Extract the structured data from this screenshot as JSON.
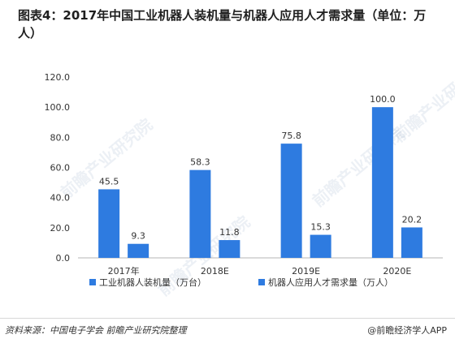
{
  "title": "图表4：2017年中国工业机器人装机量与机器人应用人才需求量（单位：万人）",
  "source": "资料来源：中国电子学会  前瞻产业研究院整理",
  "brand": "@前瞻经济学人APP",
  "watermark": "前瞻产业研究院",
  "colors": {
    "bar": "#2e7be0",
    "axis": "#b5b5b5",
    "text": "#333333"
  },
  "chart_data": {
    "type": "bar",
    "categories": [
      "2017年",
      "2018E",
      "2019E",
      "2020E"
    ],
    "series": [
      {
        "name": "工业机器人装机量（万台）",
        "values": [
          45.5,
          58.3,
          75.8,
          100.0
        ]
      },
      {
        "name": "机器人应用人才需求量（万人）",
        "values": [
          9.3,
          11.8,
          15.3,
          20.2
        ]
      }
    ],
    "value_labels": [
      [
        "45.5",
        "58.3",
        "75.8",
        "100.0"
      ],
      [
        "9.3",
        "11.8",
        "15.3",
        "20.2"
      ]
    ],
    "ylim": [
      0,
      120
    ],
    "yticks": [
      "0.0",
      "20.0",
      "40.0",
      "60.0",
      "80.0",
      "100.0",
      "120.0"
    ],
    "ytick_values": [
      0,
      20,
      40,
      60,
      80,
      100,
      120
    ],
    "grid": false,
    "legend_position": "bottom"
  }
}
